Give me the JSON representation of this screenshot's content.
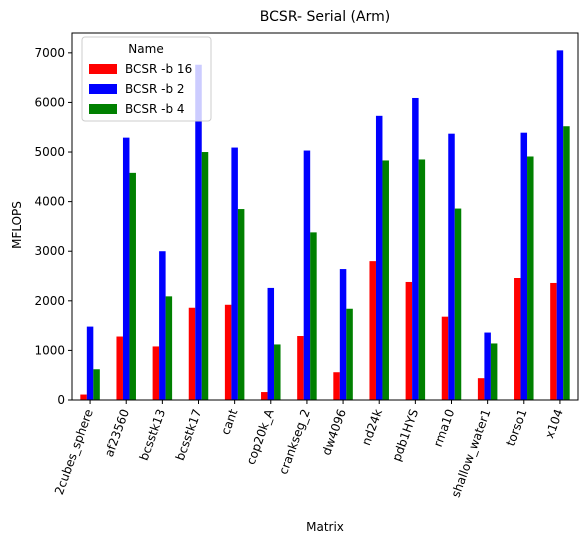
{
  "chart_data": {
    "type": "bar",
    "title": "BCSR- Serial (Arm)",
    "xlabel": "Matrix",
    "ylabel": "MFLOPS",
    "ylim": [
      0,
      7400
    ],
    "yticks": [
      0,
      1000,
      2000,
      3000,
      4000,
      5000,
      6000,
      7000
    ],
    "grid": false,
    "legend": {
      "title": "Name",
      "placement": "top-left"
    },
    "categories": [
      "2cubes_sphere",
      "af23560",
      "bcsstk13",
      "bcsstk17",
      "cant",
      "cop20k_A",
      "crankseg_2",
      "dw4096",
      "nd24k",
      "pdb1HYS",
      "rma10",
      "shallow_water1",
      "torso1",
      "x104"
    ],
    "series": [
      {
        "name": "BCSR -b 16",
        "color": "#ff0000",
        "values": [
          110,
          1280,
          1080,
          1860,
          1920,
          160,
          1290,
          560,
          2800,
          2380,
          1680,
          440,
          2460,
          2360
        ]
      },
      {
        "name": "BCSR -b 2",
        "color": "#0000ff",
        "values": [
          1480,
          5290,
          3000,
          6760,
          5090,
          2260,
          5030,
          2640,
          5730,
          6090,
          5370,
          1360,
          5390,
          7050
        ]
      },
      {
        "name": "BCSR -b 4",
        "color": "#008000",
        "values": [
          620,
          4580,
          2090,
          5000,
          3850,
          1120,
          3380,
          1840,
          4830,
          4850,
          3860,
          1140,
          4910,
          5520
        ]
      }
    ]
  }
}
